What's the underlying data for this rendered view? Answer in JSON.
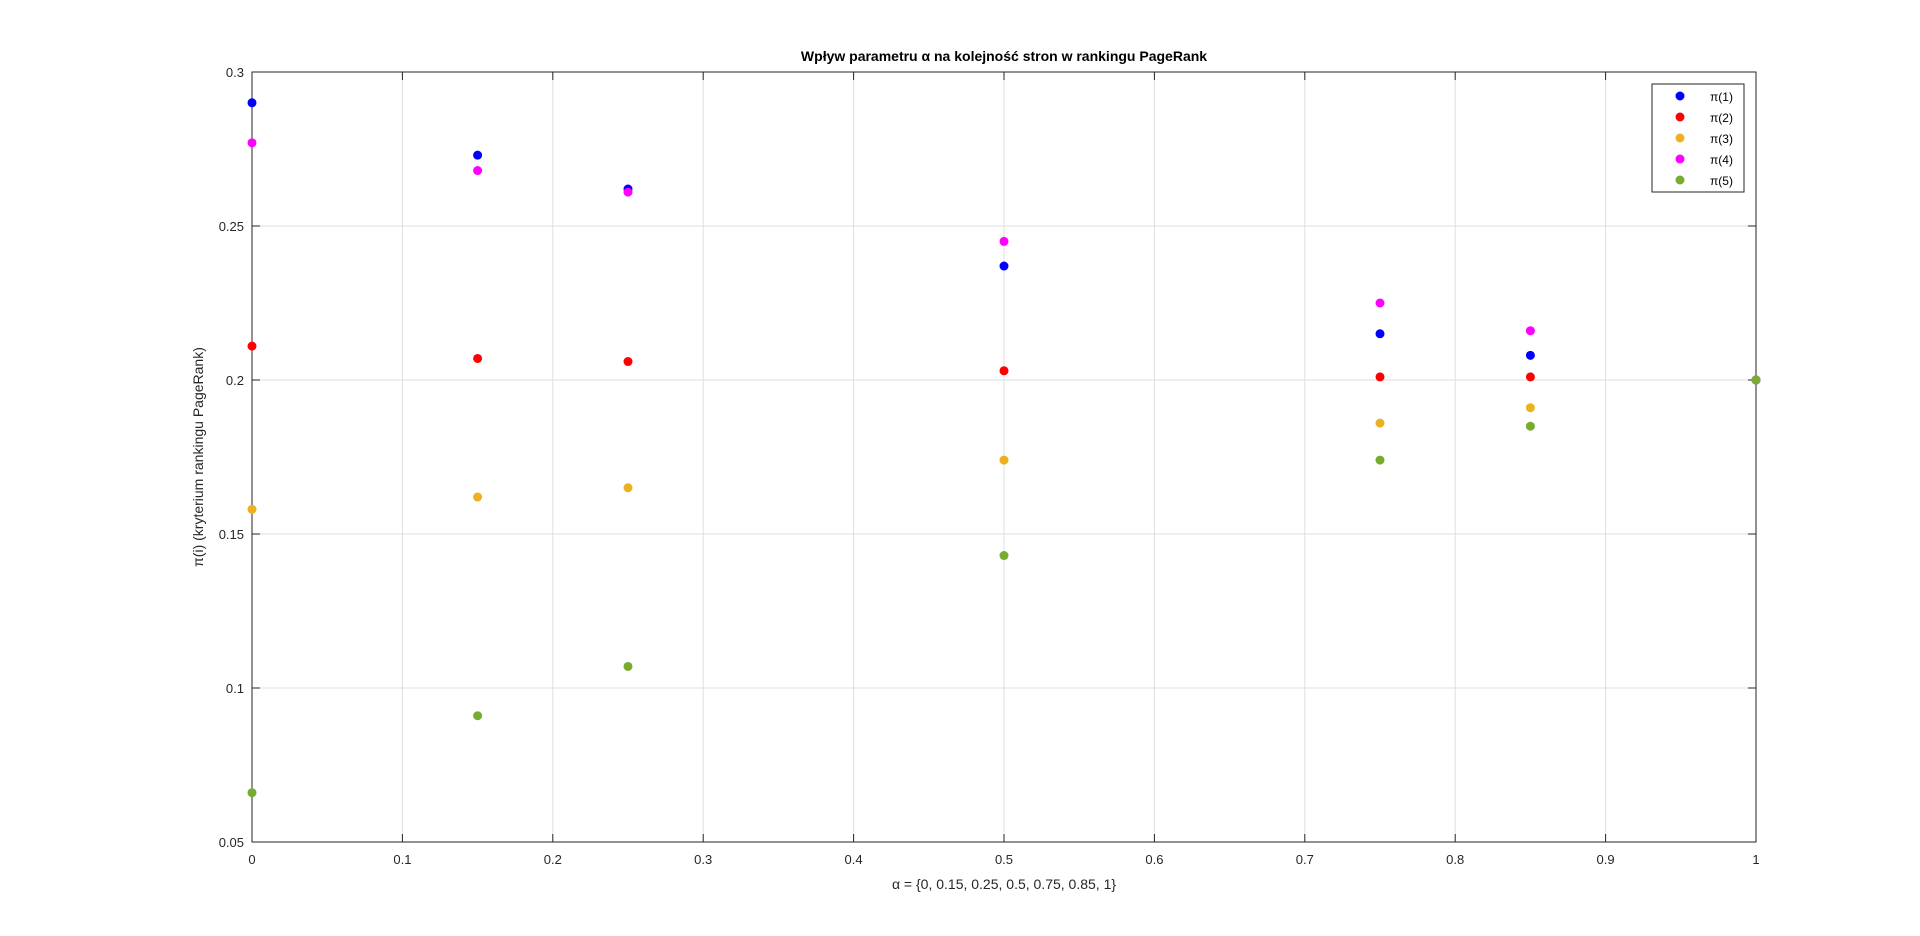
{
  "chart_data": {
    "type": "scatter",
    "title": "Wpływ parametru α na kolejność stron w rankingu PageRank",
    "xlabel": "α = {0,  0.15,  0.25,  0.5,  0.75,  0.85,  1}",
    "ylabel": "π(i) (kryterium rankingu PageRank)",
    "xlim": [
      0,
      1
    ],
    "ylim": [
      0.05,
      0.3
    ],
    "xticks": [
      0,
      0.1,
      0.2,
      0.3,
      0.4,
      0.5,
      0.6,
      0.7,
      0.8,
      0.9,
      1
    ],
    "xtick_labels": [
      "0",
      "0.1",
      "0.2",
      "0.3",
      "0.4",
      "0.5",
      "0.6",
      "0.7",
      "0.8",
      "0.9",
      "1"
    ],
    "yticks": [
      0.05,
      0.1,
      0.15,
      0.2,
      0.25,
      0.3
    ],
    "ytick_labels": [
      "0.05",
      "0.1",
      "0.15",
      "0.2",
      "0.25",
      "0.3"
    ],
    "grid": true,
    "legend_position": "top-right",
    "x": [
      0,
      0.15,
      0.25,
      0.5,
      0.75,
      0.85,
      1
    ],
    "series": [
      {
        "name": "π(1)",
        "color": "#0000ff",
        "values": [
          0.29,
          0.273,
          0.262,
          0.237,
          0.215,
          0.208,
          0.2
        ]
      },
      {
        "name": "π(2)",
        "color": "#ff0000",
        "values": [
          0.211,
          0.207,
          0.206,
          0.203,
          0.201,
          0.201,
          0.2
        ]
      },
      {
        "name": "π(3)",
        "color": "#edb120",
        "values": [
          0.158,
          0.162,
          0.165,
          0.174,
          0.186,
          0.191,
          0.2
        ]
      },
      {
        "name": "π(4)",
        "color": "#ff00ff",
        "values": [
          0.277,
          0.268,
          0.261,
          0.245,
          0.225,
          0.216,
          0.2
        ]
      },
      {
        "name": "π(5)",
        "color": "#77ac30",
        "values": [
          0.066,
          0.091,
          0.107,
          0.143,
          0.174,
          0.185,
          0.2
        ]
      }
    ]
  }
}
